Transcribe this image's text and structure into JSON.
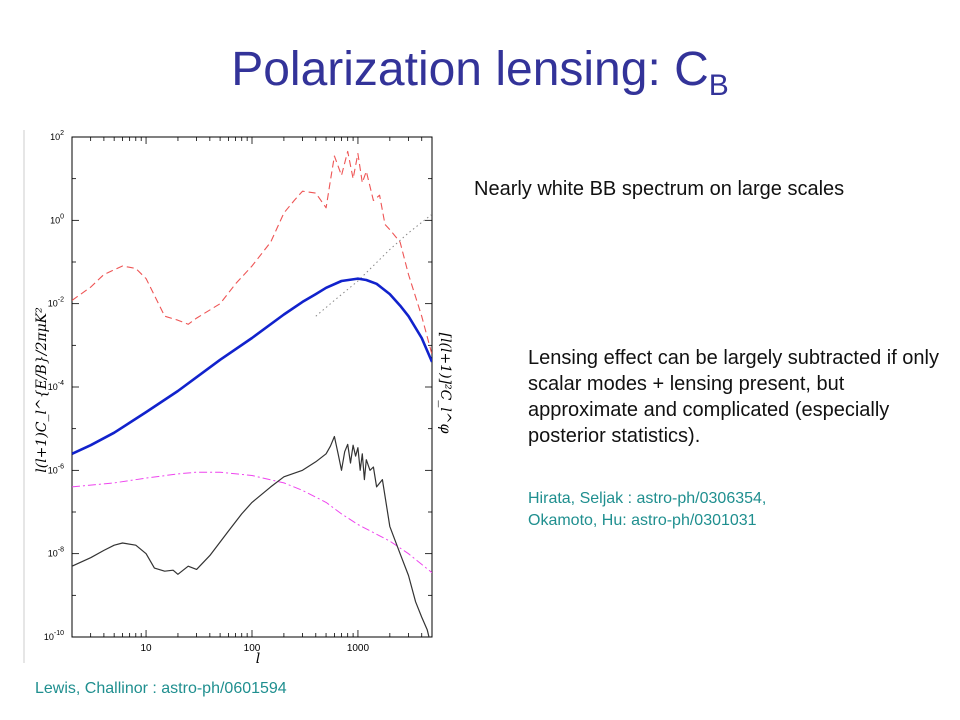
{
  "slide": {
    "title_main": "Polarization lensing: C",
    "title_sub": "B",
    "note_white": "Nearly white BB spectrum on large scales",
    "note_lensing": "Lensing effect can be largely subtracted if only scalar modes + lensing present, but approximate and complicated (especially posterior statistics).",
    "ref_hirata": "Hirata, Seljak : astro-ph/0306354,",
    "ref_okamoto": "Okamoto, Hu: astro-ph/0301031",
    "ref_lewis": "Lewis, Challinor : astro-ph/0601594"
  },
  "chart_data": {
    "type": "line",
    "xscale": "log",
    "yscale": "log",
    "xlim": [
      2,
      5000
    ],
    "ylim": [
      1e-10,
      100
    ],
    "x_ticks": [
      "10",
      "100",
      "1000"
    ],
    "y_ticks": [
      "10^2",
      "10^0",
      "10^-2",
      "10^-4",
      "10^-6",
      "10^-8",
      "10^-10"
    ],
    "xlabel": "l",
    "ylabel": "l(l+1)C_l^{E/B}/2πμK²",
    "ylabel_right": "[l(l+1)]²C_l^φ",
    "series": [
      {
        "color": "#ee5555",
        "dash": "dashed",
        "x": [
          2,
          3,
          4,
          6,
          8,
          10,
          15,
          20,
          25,
          30,
          50,
          70,
          100,
          150,
          200,
          250,
          300,
          400,
          500,
          550,
          600,
          700,
          800,
          900,
          1000,
          1100,
          1200,
          1400,
          1600,
          1800,
          2000,
          2500,
          3000,
          4000,
          5000
        ],
        "y": [
          0.012,
          0.025,
          0.05,
          0.08,
          0.07,
          0.04,
          0.005,
          0.004,
          0.0032,
          0.0045,
          0.01,
          0.03,
          0.08,
          0.3,
          1.5,
          3.0,
          5.0,
          4.5,
          2.0,
          9.0,
          35,
          12,
          45,
          10,
          40,
          8,
          15,
          3,
          4,
          0.8,
          0.6,
          0.3,
          0.05,
          0.005,
          0.0006
        ]
      },
      {
        "color": "#888888",
        "dash": "dotted",
        "x": [
          400,
          600,
          1000,
          2000,
          3000,
          5000
        ],
        "y": [
          0.005,
          0.012,
          0.035,
          0.2,
          0.5,
          1.4
        ]
      },
      {
        "color": "#1122cc",
        "dash": "solid",
        "x": [
          2,
          3,
          5,
          10,
          20,
          50,
          100,
          200,
          300,
          400,
          500,
          700,
          1000,
          1200,
          1500,
          2000,
          2500,
          3000,
          4000,
          5000
        ],
        "y": [
          2.5e-06,
          4e-06,
          8e-06,
          2.5e-05,
          8e-05,
          0.00045,
          0.0015,
          0.0055,
          0.011,
          0.017,
          0.024,
          0.035,
          0.04,
          0.037,
          0.03,
          0.017,
          0.009,
          0.005,
          0.0015,
          0.0004
        ]
      },
      {
        "color": "#ee44ee",
        "dash": "dashdot",
        "x": [
          2,
          5,
          10,
          20,
          30,
          50,
          100,
          200,
          300,
          500,
          700,
          1000,
          2000,
          3000,
          5000
        ],
        "y": [
          4e-07,
          5e-07,
          6.5e-07,
          8.2e-07,
          9e-07,
          9e-07,
          7.5e-07,
          5e-07,
          3.3e-07,
          1.7e-07,
          9e-08,
          5e-08,
          2e-08,
          1e-08,
          3.5e-09
        ]
      },
      {
        "color": "#333333",
        "dash": "solid",
        "x": [
          2,
          3,
          4,
          5,
          6,
          8,
          10,
          12,
          15,
          18,
          20,
          25,
          30,
          40,
          60,
          80,
          100,
          150,
          200,
          300,
          400,
          500,
          550,
          600,
          650,
          700,
          750,
          800,
          850,
          900,
          950,
          1000,
          1050,
          1100,
          1150,
          1200,
          1300,
          1400,
          1500,
          1700,
          2000,
          2500,
          3000,
          3500,
          4000,
          4500,
          5000
        ],
        "y": [
          5e-09,
          8e-09,
          1.2e-08,
          1.6e-08,
          1.8e-08,
          1.6e-08,
          1e-08,
          4.5e-09,
          3.8e-09,
          4e-09,
          3.2e-09,
          5e-09,
          4.2e-09,
          9e-09,
          3.5e-08,
          9e-08,
          1.7e-07,
          4e-07,
          7e-07,
          1e-06,
          1.6e-06,
          2.5e-06,
          3.8e-06,
          6.5e-06,
          2.5e-06,
          1e-06,
          2.8e-06,
          4.2e-06,
          1.5e-06,
          4e-06,
          2.2e-06,
          3.5e-06,
          1e-06,
          2.5e-06,
          6e-07,
          1.8e-06,
          1e-06,
          1.2e-06,
          4e-07,
          6e-07,
          4.5e-08,
          1e-08,
          3e-09,
          7e-10,
          3e-10,
          1.5e-10,
          5e-11
        ]
      }
    ]
  }
}
